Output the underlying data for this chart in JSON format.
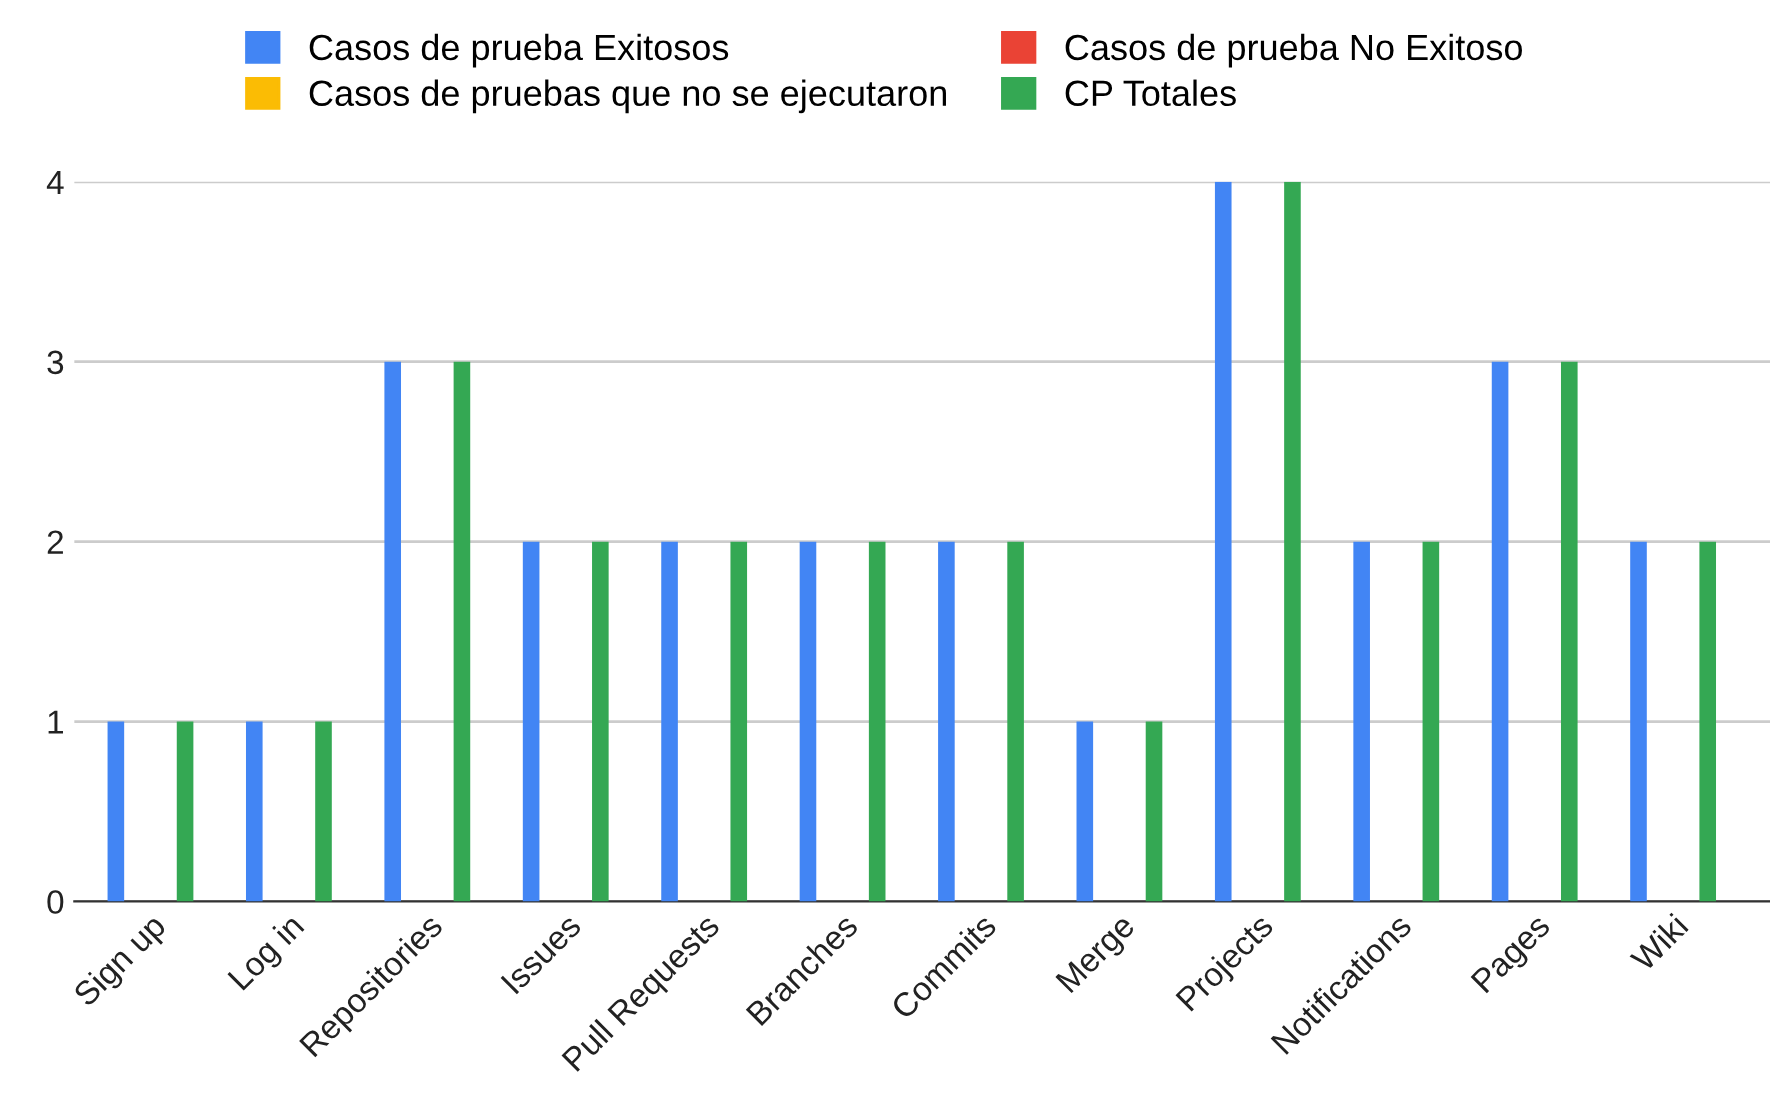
{
  "chart_data": {
    "type": "bar",
    "categories": [
      "Sign up",
      "Log in",
      "Repositories",
      "Issues",
      "Pull Requests",
      "Branches",
      "Commits",
      "Merge",
      "Projects",
      "Notifications",
      "Pages",
      "Wiki"
    ],
    "series": [
      {
        "name": "Casos de prueba Exitosos",
        "color": "#4285f4",
        "values": [
          1,
          1,
          3,
          2,
          2,
          2,
          2,
          1,
          4,
          2,
          3,
          2
        ]
      },
      {
        "name": "Casos de prueba No Exitoso",
        "color": "#ea4335",
        "values": [
          0,
          0,
          0,
          0,
          0,
          0,
          0,
          0,
          0,
          0,
          0,
          0
        ]
      },
      {
        "name": "Casos de pruebas que no se ejecutaron",
        "color": "#fbbc04",
        "values": [
          0,
          0,
          0,
          0,
          0,
          0,
          0,
          0,
          0,
          0,
          0,
          0
        ]
      },
      {
        "name": "CP Totales",
        "color": "#34a853",
        "values": [
          1,
          1,
          3,
          2,
          2,
          2,
          2,
          1,
          4,
          2,
          3,
          2
        ]
      }
    ],
    "ylim": [
      0,
      4
    ],
    "yticks": [
      0,
      1,
      2,
      3,
      4
    ],
    "grid": "y",
    "legend": "top"
  }
}
